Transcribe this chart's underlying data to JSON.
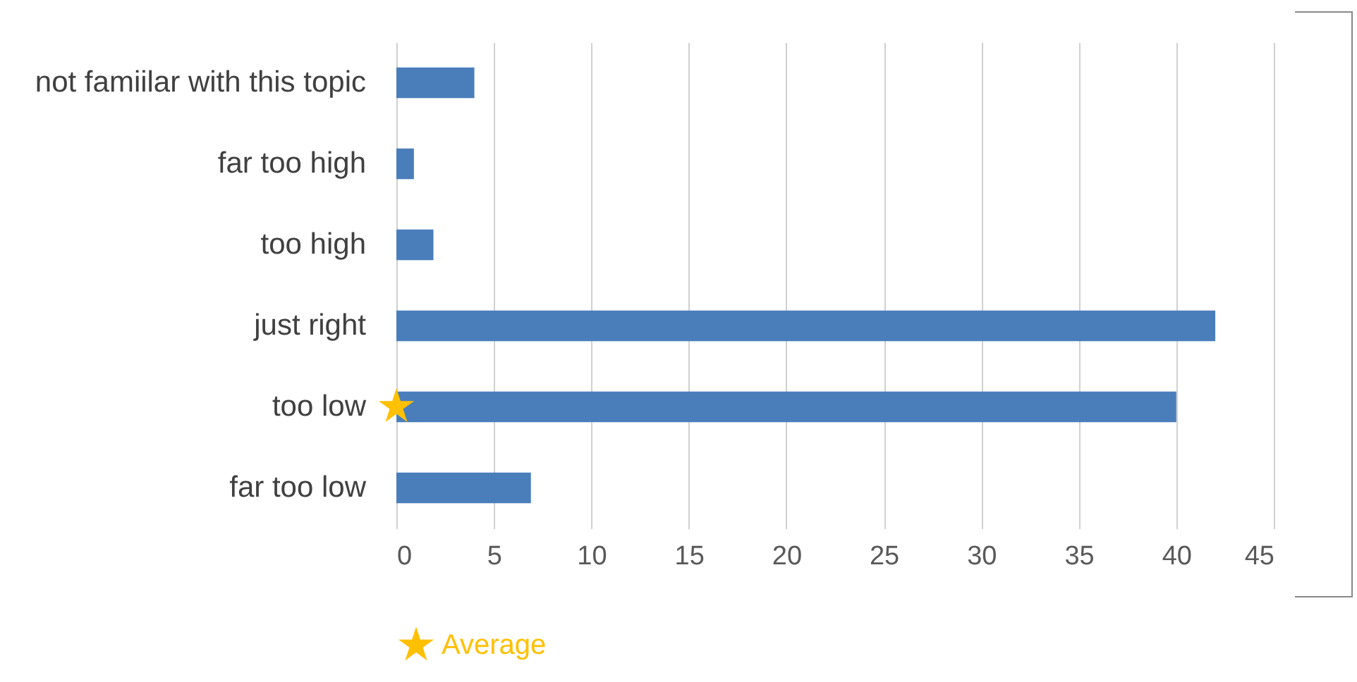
{
  "chart_data": {
    "type": "bar",
    "orientation": "horizontal",
    "categories": [
      "not famiilar with this topic",
      "far too high",
      "too high",
      "just right",
      "too low",
      "far too low"
    ],
    "series": [
      {
        "color": "#4a7ebb",
        "values": [
          4,
          0.9,
          1.9,
          42,
          40,
          6.9
        ]
      },
      {
        "type": "scatter",
        "name": "Average",
        "color": "#ffc000",
        "marker": "star",
        "x": [
          "too low"
        ],
        "values": [
          0
        ]
      }
    ],
    "xlim": [
      0,
      45
    ],
    "xticks": [
      0,
      5,
      10,
      15,
      20,
      25,
      30,
      35,
      40,
      45
    ],
    "grid": "x",
    "legend": "bottom"
  }
}
